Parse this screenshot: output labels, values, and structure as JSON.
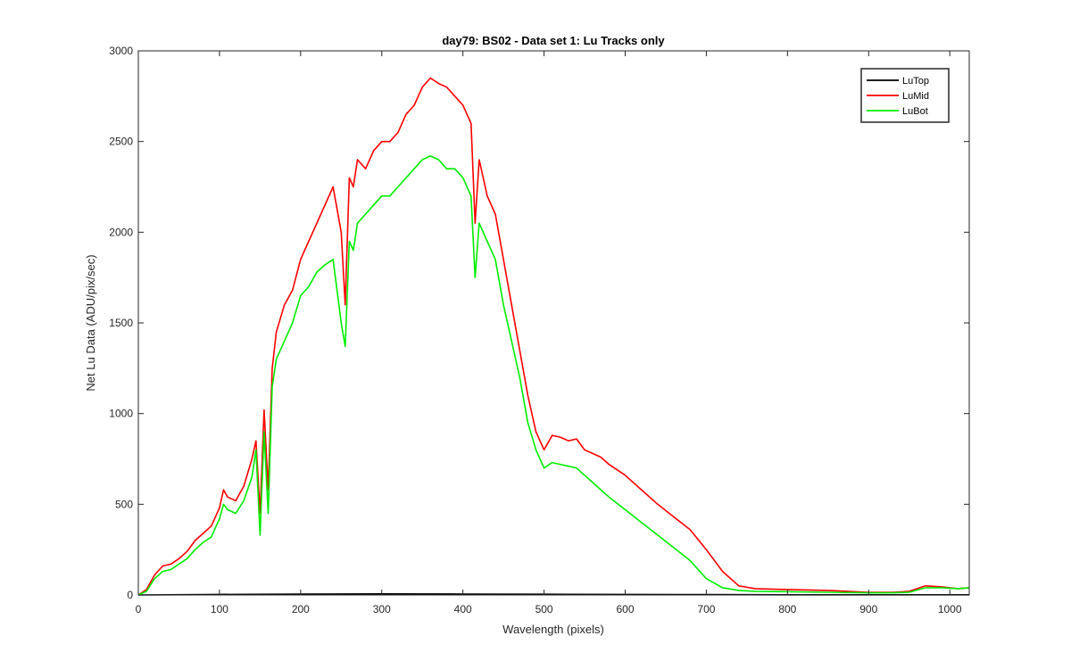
{
  "chart_data": {
    "type": "line",
    "title": "day79: BS02 - Data set 1: Lu Tracks only",
    "xlabel": "Wavelength (pixels)",
    "ylabel": "Net Lu Data (ADU/pix/sec)",
    "xlim": [
      0,
      1024
    ],
    "ylim": [
      0,
      3000
    ],
    "xticks": [
      0,
      100,
      200,
      300,
      400,
      500,
      600,
      700,
      800,
      900,
      1000
    ],
    "yticks": [
      0,
      500,
      1000,
      1500,
      2000,
      2500,
      3000
    ],
    "grid": false,
    "legend_position": "top-right",
    "series": [
      {
        "name": "LuTop",
        "color": "#000000",
        "x": [
          0,
          100,
          200,
          300,
          400,
          500,
          600,
          700,
          800,
          900,
          1024
        ],
        "y": [
          0,
          3,
          5,
          6,
          5,
          4,
          3,
          2,
          1,
          1,
          1
        ]
      },
      {
        "name": "LuMid",
        "color": "#ff0000",
        "x": [
          0,
          10,
          20,
          30,
          40,
          50,
          60,
          70,
          80,
          90,
          100,
          105,
          110,
          120,
          130,
          140,
          145,
          150,
          155,
          160,
          165,
          170,
          180,
          190,
          200,
          210,
          220,
          230,
          240,
          250,
          255,
          260,
          265,
          270,
          280,
          290,
          300,
          310,
          320,
          330,
          340,
          350,
          360,
          370,
          380,
          390,
          400,
          410,
          415,
          420,
          430,
          440,
          450,
          460,
          470,
          480,
          490,
          500,
          510,
          520,
          530,
          540,
          550,
          560,
          570,
          580,
          600,
          620,
          640,
          660,
          680,
          700,
          720,
          740,
          760,
          800,
          850,
          900,
          930,
          950,
          970,
          990,
          1010,
          1024
        ],
        "y": [
          0,
          30,
          110,
          160,
          170,
          200,
          240,
          300,
          340,
          380,
          480,
          580,
          540,
          520,
          600,
          750,
          850,
          450,
          1020,
          580,
          1250,
          1450,
          1600,
          1680,
          1850,
          1950,
          2050,
          2150,
          2250,
          2000,
          1600,
          2300,
          2250,
          2400,
          2350,
          2450,
          2500,
          2500,
          2550,
          2650,
          2700,
          2800,
          2850,
          2820,
          2800,
          2750,
          2700,
          2600,
          2050,
          2400,
          2200,
          2100,
          1850,
          1600,
          1350,
          1100,
          900,
          800,
          880,
          870,
          850,
          860,
          800,
          780,
          760,
          720,
          660,
          580,
          500,
          430,
          360,
          250,
          130,
          50,
          35,
          30,
          25,
          15,
          15,
          20,
          50,
          45,
          35,
          40
        ]
      },
      {
        "name": "LuBot",
        "color": "#00ee00",
        "x": [
          0,
          10,
          20,
          30,
          40,
          50,
          60,
          70,
          80,
          90,
          100,
          105,
          110,
          120,
          130,
          140,
          145,
          150,
          155,
          160,
          165,
          170,
          180,
          190,
          200,
          210,
          220,
          230,
          240,
          250,
          255,
          260,
          265,
          270,
          280,
          290,
          300,
          310,
          320,
          330,
          340,
          350,
          360,
          370,
          380,
          390,
          400,
          410,
          415,
          420,
          430,
          440,
          450,
          460,
          470,
          480,
          490,
          500,
          510,
          520,
          530,
          540,
          550,
          560,
          570,
          580,
          600,
          620,
          640,
          660,
          680,
          700,
          720,
          740,
          760,
          800,
          850,
          900,
          930,
          950,
          970,
          990,
          1010,
          1024
        ],
        "y": [
          0,
          20,
          90,
          130,
          140,
          170,
          200,
          250,
          290,
          320,
          420,
          500,
          470,
          450,
          520,
          650,
          800,
          330,
          900,
          450,
          1150,
          1300,
          1400,
          1500,
          1650,
          1700,
          1780,
          1820,
          1850,
          1500,
          1370,
          1950,
          1900,
          2050,
          2100,
          2150,
          2200,
          2200,
          2250,
          2300,
          2350,
          2400,
          2420,
          2400,
          2350,
          2350,
          2300,
          2200,
          1750,
          2050,
          1950,
          1850,
          1600,
          1400,
          1200,
          950,
          800,
          700,
          730,
          720,
          710,
          700,
          660,
          620,
          580,
          540,
          470,
          400,
          330,
          260,
          190,
          90,
          40,
          25,
          20,
          18,
          15,
          12,
          12,
          15,
          40,
          40,
          35,
          40
        ]
      }
    ]
  }
}
